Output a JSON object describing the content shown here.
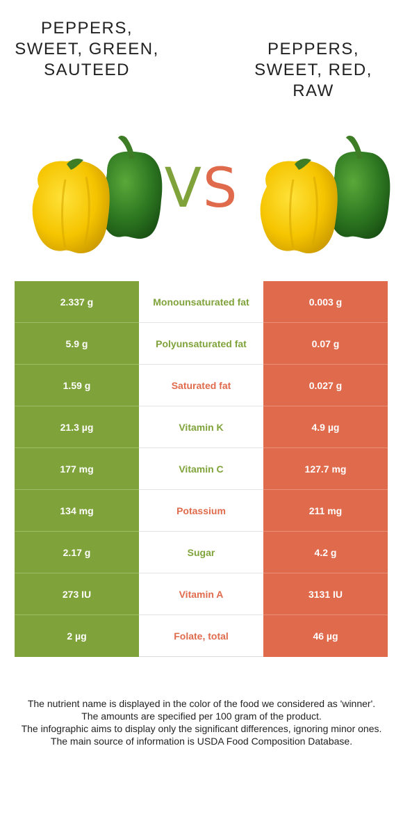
{
  "foods": {
    "left": {
      "name": "Peppers, sweet, green, sauteed",
      "color": "#7fa33a"
    },
    "right": {
      "name": "Peppers, sweet, red, raw",
      "color": "#e06b4c"
    }
  },
  "vs": {
    "v": "V",
    "s": "S"
  },
  "images": {
    "left": "bell-peppers-icon",
    "right": "bell-peppers-icon"
  },
  "rows": [
    {
      "left": "2.337 g",
      "nutrient": "Monounsaturated fat",
      "right": "0.003 g",
      "winner": "left"
    },
    {
      "left": "5.9 g",
      "nutrient": "Polyunsaturated fat",
      "right": "0.07 g",
      "winner": "left"
    },
    {
      "left": "1.59 g",
      "nutrient": "Saturated fat",
      "right": "0.027 g",
      "winner": "right"
    },
    {
      "left": "21.3 µg",
      "nutrient": "Vitamin K",
      "right": "4.9 µg",
      "winner": "left"
    },
    {
      "left": "177 mg",
      "nutrient": "Vitamin C",
      "right": "127.7 mg",
      "winner": "left"
    },
    {
      "left": "134 mg",
      "nutrient": "Potassium",
      "right": "211 mg",
      "winner": "right"
    },
    {
      "left": "2.17 g",
      "nutrient": "Sugar",
      "right": "4.2 g",
      "winner": "left"
    },
    {
      "left": "273 IU",
      "nutrient": "Vitamin A",
      "right": "3131 IU",
      "winner": "right"
    },
    {
      "left": "2 µg",
      "nutrient": "Folate, total",
      "right": "46 µg",
      "winner": "right"
    }
  ],
  "footnote": [
    "The nutrient name is displayed in the color of the food we considered as 'winner'.",
    "The amounts are specified per 100 gram of the product.",
    "The infographic aims to display only the significant differences, ignoring minor ones.",
    "The main source of information is USDA Food Composition Database."
  ]
}
